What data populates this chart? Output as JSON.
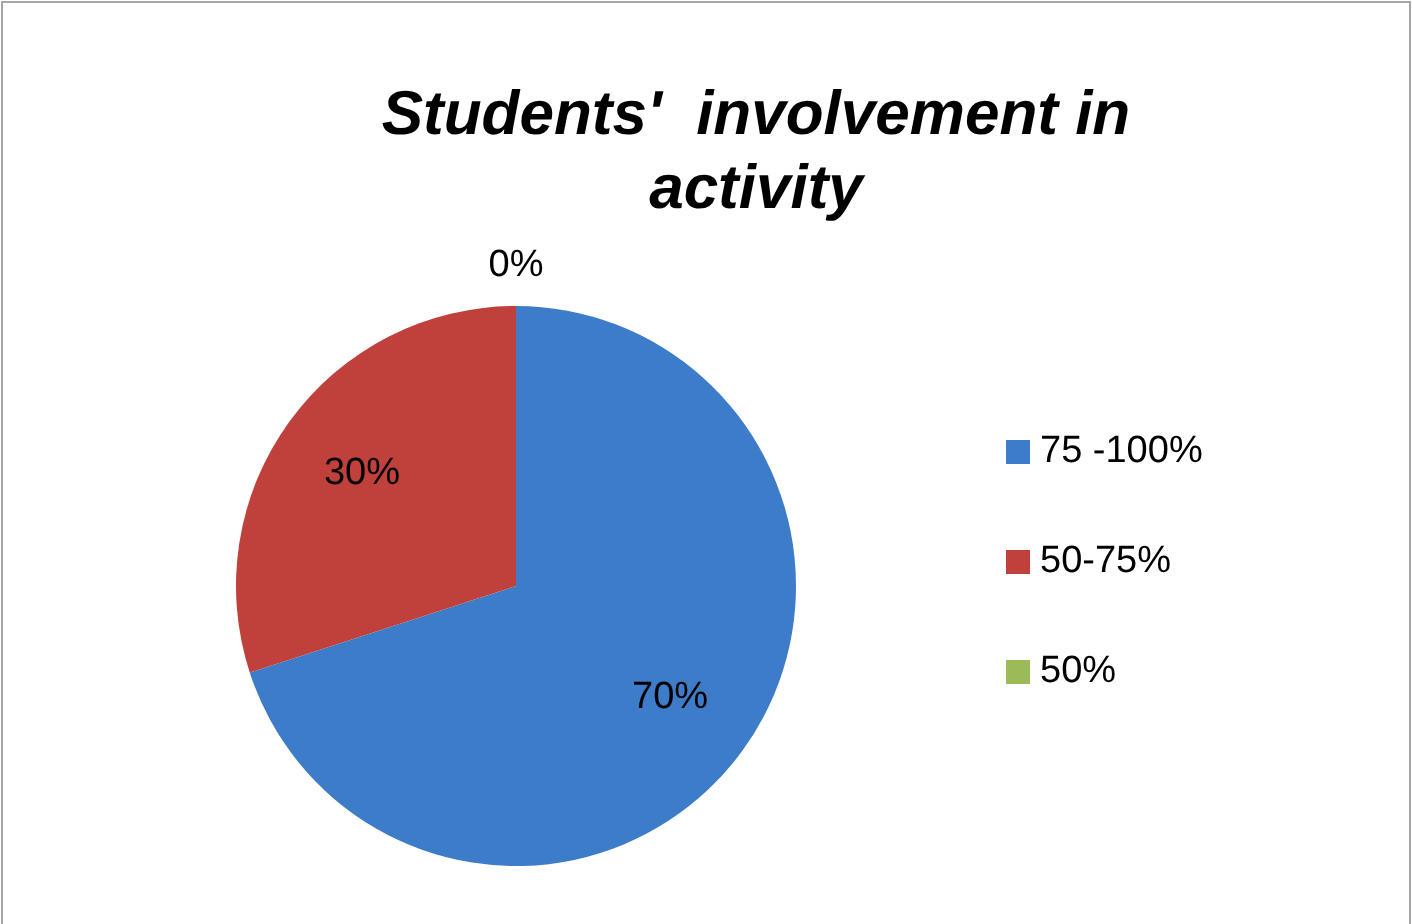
{
  "chart_data": {
    "type": "pie",
    "title": "Students'  involvement in activity",
    "categories": [
      "75 -100%",
      "50-75%",
      "50%"
    ],
    "values": [
      70,
      30,
      0
    ],
    "colors": [
      "#3d7cc9",
      "#c0403c",
      "#9bbb59"
    ],
    "value_labels": [
      "70%",
      "30%",
      "0%"
    ],
    "legend": "right"
  }
}
